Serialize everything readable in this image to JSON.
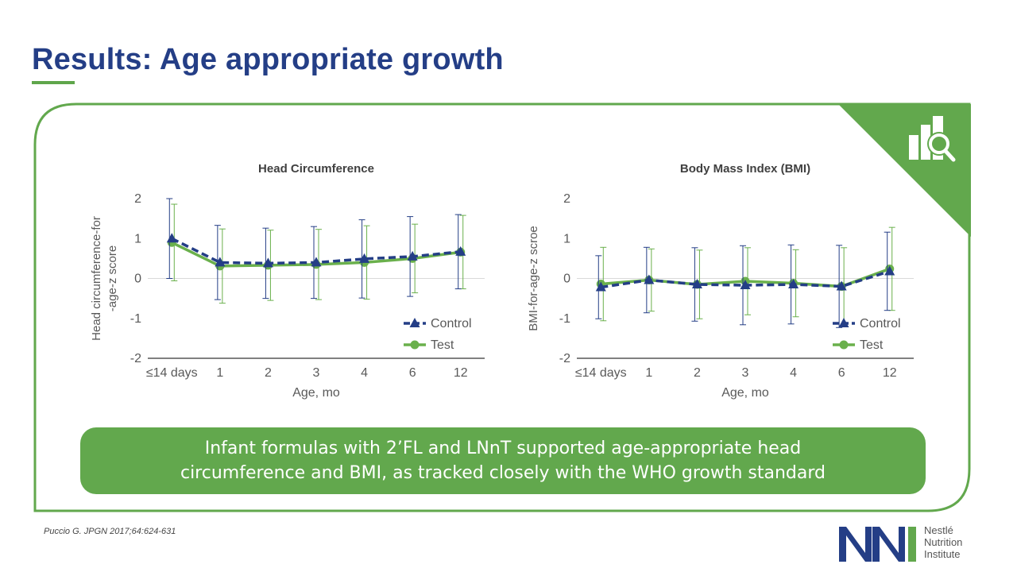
{
  "slide": {
    "title": "Results: Age appropriate growth",
    "summary": "Infant formulas with 2’FL and LNnT supported age-appropriate head circumference and BMI, as tracked closely with the WHO growth standard",
    "citation": "Puccio G.  JPGN 2017;64:624-631",
    "logo": {
      "lines": [
        "Nestlé",
        "Nutrition",
        "Institute"
      ]
    }
  },
  "colors": {
    "accent_green": "#62a84d",
    "navy": "#243e86",
    "control": "#243e86",
    "test": "#6ab04c"
  },
  "chart_data": [
    {
      "type": "line",
      "title": "Head Circumference",
      "xlabel": "Age, mo",
      "ylabel_lines": [
        "Head circumference-for",
        "-age-z score"
      ],
      "categories": [
        "≤14 days",
        "1",
        "2",
        "3",
        "4",
        "6",
        "12"
      ],
      "ylim": [
        -2,
        2
      ],
      "yticks": [
        2,
        1,
        0,
        -1,
        -2
      ],
      "legend_position": "bottom-right",
      "series": [
        {
          "name": "Control",
          "marker": "triangle",
          "dashed": true,
          "values": [
            1.0,
            0.4,
            0.38,
            0.4,
            0.49,
            0.55,
            0.67
          ],
          "error": [
            1.0,
            0.93,
            0.88,
            0.9,
            0.98,
            1.0,
            0.93
          ]
        },
        {
          "name": "Test",
          "marker": "circle",
          "dashed": false,
          "values": [
            0.9,
            0.31,
            0.33,
            0.35,
            0.4,
            0.5,
            0.66
          ],
          "error": [
            0.96,
            0.93,
            0.88,
            0.88,
            0.92,
            0.86,
            0.92
          ]
        }
      ]
    },
    {
      "type": "line",
      "title": "Body Mass Index (BMI)",
      "xlabel": "Age, mo",
      "ylabel_lines": [
        "BMI-for-age-z scroe"
      ],
      "categories": [
        "≤14 days",
        "1",
        "2",
        "3",
        "4",
        "6",
        "12"
      ],
      "ylim": [
        -2,
        2
      ],
      "yticks": [
        2,
        1,
        0,
        -1,
        -2
      ],
      "legend_position": "bottom-right",
      "series": [
        {
          "name": "Control",
          "marker": "triangle",
          "dashed": true,
          "values": [
            -0.22,
            -0.04,
            -0.15,
            -0.17,
            -0.15,
            -0.2,
            0.18
          ],
          "error": [
            0.79,
            0.82,
            0.92,
            0.99,
            0.99,
            1.03,
            0.98
          ]
        },
        {
          "name": "Test",
          "marker": "circle",
          "dashed": false,
          "values": [
            -0.14,
            -0.04,
            -0.15,
            -0.07,
            -0.12,
            -0.2,
            0.24
          ],
          "error": [
            0.92,
            0.78,
            0.86,
            0.84,
            0.84,
            0.97,
            1.04
          ]
        }
      ]
    }
  ]
}
